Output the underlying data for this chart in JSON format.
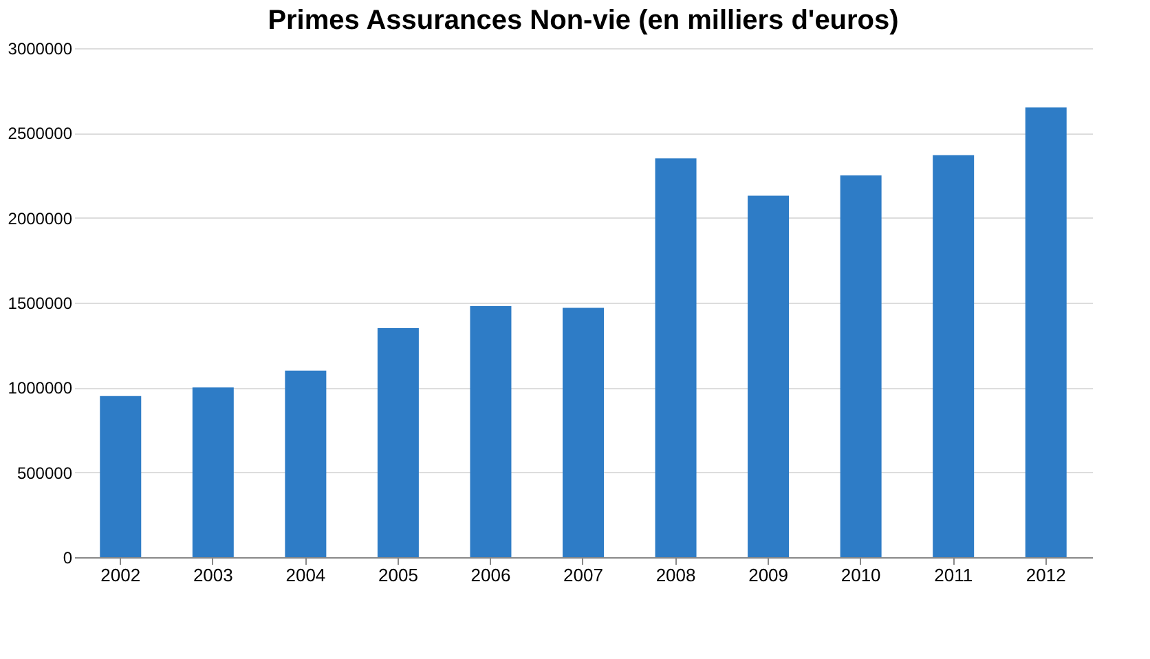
{
  "chart_data": {
    "type": "bar",
    "title": "Primes Assurances Non-vie (en milliers d'euros)",
    "categories": [
      "2002",
      "2003",
      "2004",
      "2005",
      "2006",
      "2007",
      "2008",
      "2009",
      "2010",
      "2011",
      "2012"
    ],
    "values": [
      950000,
      1000000,
      1100000,
      1350000,
      1480000,
      1470000,
      2350000,
      2130000,
      2250000,
      2370000,
      2650000
    ],
    "color": "#2e7cc6",
    "ylim": [
      0,
      3000000
    ],
    "yticks": [
      0,
      500000,
      1000000,
      1500000,
      2000000,
      2500000,
      3000000
    ],
    "grid": "y"
  }
}
